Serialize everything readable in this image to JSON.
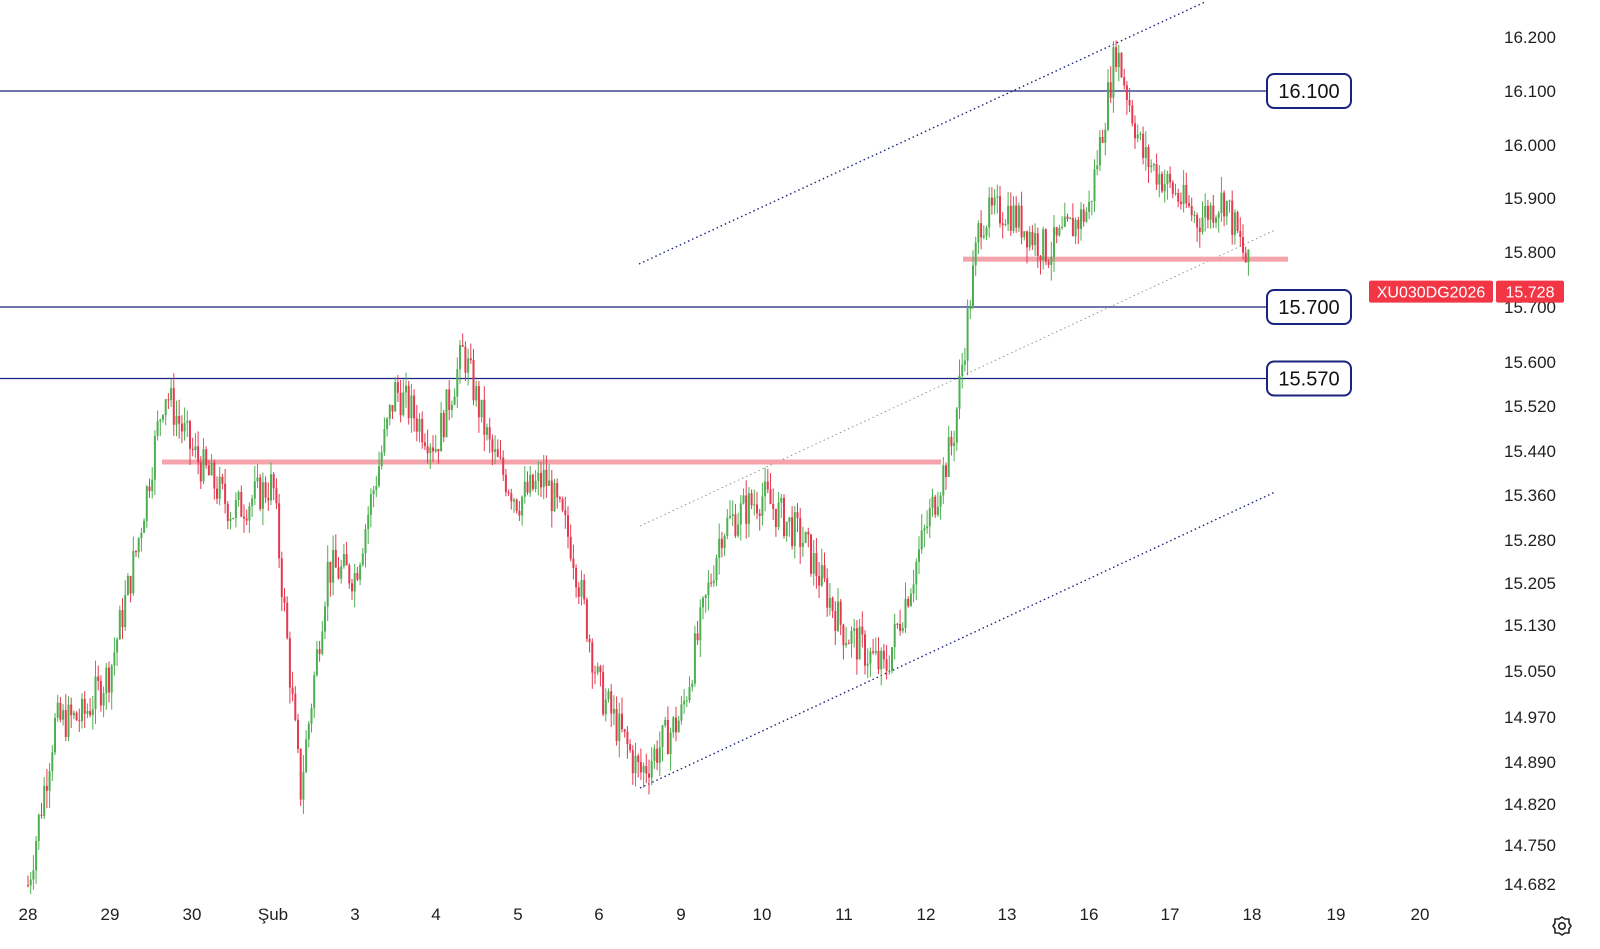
{
  "chart_data": {
    "type": "candlestick",
    "symbol": "XU030DG2026",
    "last_price": "15.728",
    "colors": {
      "up": "#4caf50",
      "down": "#e53950",
      "level": "#1a237e",
      "zone": "#f4a3ab",
      "price_tag": "#f23645"
    },
    "y_ticks": [
      "16.200",
      "16.100",
      "16.000",
      "15.900",
      "15.800",
      "15.700",
      "15.600",
      "15.520",
      "15.440",
      "15.360",
      "15.280",
      "15.205",
      "15.130",
      "15.050",
      "14.970",
      "14.890",
      "14.820",
      "14.750",
      "14.682"
    ],
    "x_ticks": [
      "28",
      "29",
      "30",
      "Şub",
      "3",
      "4",
      "5",
      "6",
      "9",
      "10",
      "11",
      "12",
      "13",
      "16",
      "17",
      "18",
      "19",
      "20"
    ],
    "levels": [
      {
        "label": "16.100",
        "value": 16.1
      },
      {
        "label": "15.700",
        "value": 15.7
      },
      {
        "label": "15.570",
        "value": 15.57
      }
    ],
    "zones": [
      {
        "value": 15.42,
        "from": "29",
        "to": "12"
      },
      {
        "value": 15.787,
        "from": "12",
        "to": "18"
      }
    ],
    "price_path": [
      [
        "28",
        14.68
      ],
      [
        "28",
        14.96
      ],
      [
        "28",
        14.97
      ],
      [
        "29",
        15.05
      ],
      [
        "29",
        15.27
      ],
      [
        "29",
        15.55
      ],
      [
        "30",
        15.44
      ],
      [
        "30",
        15.33
      ],
      [
        "Şub",
        15.38
      ],
      [
        "Şub",
        14.84
      ],
      [
        "Şub",
        15.23
      ],
      [
        "3",
        15.22
      ],
      [
        "3",
        15.55
      ],
      [
        "4",
        15.45
      ],
      [
        "4",
        15.62
      ],
      [
        "4",
        15.44
      ],
      [
        "5",
        15.35
      ],
      [
        "5",
        15.39
      ],
      [
        "5",
        15.27
      ],
      [
        "6",
        15.02
      ],
      [
        "6",
        14.87
      ],
      [
        "9",
        14.97
      ],
      [
        "9",
        15.3
      ],
      [
        "10",
        15.36
      ],
      [
        "10",
        15.28
      ],
      [
        "11",
        15.12
      ],
      [
        "11",
        15.05
      ],
      [
        "12",
        15.3
      ],
      [
        "12",
        15.46
      ],
      [
        "12",
        15.86
      ],
      [
        "13",
        15.88
      ],
      [
        "13",
        15.8
      ],
      [
        "16",
        15.88
      ],
      [
        "16",
        16.18
      ],
      [
        "16",
        15.98
      ],
      [
        "17",
        15.92
      ],
      [
        "17",
        15.86
      ],
      [
        "17",
        15.9
      ],
      [
        "18",
        15.75
      ],
      [
        "18",
        15.728
      ]
    ]
  },
  "ui": {
    "settings_icon": "gear-icon"
  }
}
